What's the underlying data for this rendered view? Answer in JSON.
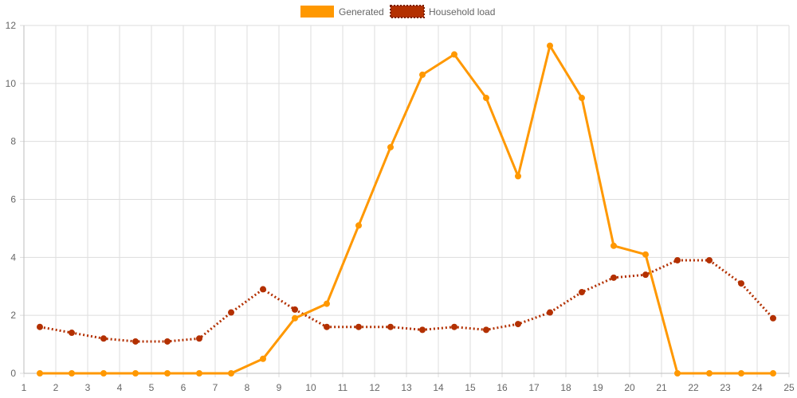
{
  "chart_data": {
    "type": "line",
    "title": "",
    "xlabel": "",
    "ylabel": "",
    "xlim": [
      1,
      25
    ],
    "ylim": [
      0,
      12
    ],
    "x_ticks": [
      1,
      2,
      3,
      4,
      5,
      6,
      7,
      8,
      9,
      10,
      11,
      12,
      13,
      14,
      15,
      16,
      17,
      18,
      19,
      20,
      21,
      22,
      23,
      24,
      25
    ],
    "y_ticks": [
      0,
      2,
      4,
      6,
      8,
      10,
      12
    ],
    "grid": true,
    "legend_position": "top-center",
    "x": [
      1.5,
      2.5,
      3.5,
      4.5,
      5.5,
      6.5,
      7.5,
      8.5,
      9.5,
      10.5,
      11.5,
      12.5,
      13.5,
      14.5,
      15.5,
      16.5,
      17.5,
      18.5,
      19.5,
      20.5,
      21.5,
      22.5,
      23.5,
      24.5
    ],
    "series": [
      {
        "name": "Generated",
        "color": "#ff9800",
        "line_style": "solid",
        "values": [
          0,
          0,
          0,
          0,
          0,
          0,
          0,
          0.5,
          1.9,
          2.4,
          5.1,
          7.8,
          10.3,
          11.0,
          9.5,
          6.8,
          11.3,
          9.5,
          4.4,
          4.1,
          0,
          0,
          0,
          0
        ]
      },
      {
        "name": "Household load",
        "color": "#b33000",
        "line_style": "dotted",
        "values": [
          1.6,
          1.4,
          1.2,
          1.1,
          1.1,
          1.2,
          2.1,
          2.9,
          2.2,
          1.6,
          1.6,
          1.6,
          1.5,
          1.6,
          1.5,
          1.7,
          2.1,
          2.8,
          3.3,
          3.4,
          3.9,
          3.9,
          3.1,
          1.9
        ]
      }
    ]
  }
}
